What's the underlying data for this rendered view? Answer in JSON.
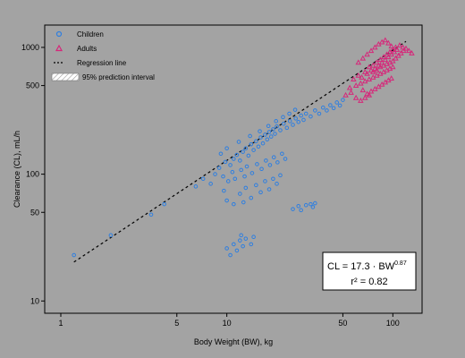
{
  "chart_data": {
    "type": "scatter",
    "title": "",
    "xlabel": "Body Weight (BW), kg",
    "ylabel": "Clearance (CL), mL/h",
    "xscale": "log",
    "yscale": "log",
    "xlim": [
      0.8,
      150
    ],
    "ylim": [
      8,
      1500
    ],
    "x_ticks": [
      1,
      5,
      10,
      50,
      100
    ],
    "y_ticks": [
      10,
      50,
      100,
      500,
      1000
    ],
    "grid": false,
    "legend_position": "top-left",
    "legend": [
      {
        "name": "Children",
        "marker": "circle",
        "color": "#2f7fe0"
      },
      {
        "name": "Adults",
        "marker": "triangle",
        "color": "#d6277a"
      },
      {
        "name": "Regression line",
        "marker": "dashed-line",
        "color": "#000000"
      },
      {
        "name": "95% prediction interval",
        "marker": "hatched-box",
        "color": "#ffffff"
      }
    ],
    "regression": {
      "coefficient": 17.3,
      "exponent": 0.87,
      "x_range": [
        1.2,
        120
      ]
    },
    "series": [
      {
        "name": "Children",
        "marker": "circle",
        "color": "#2f7fe0",
        "points": [
          [
            1.2,
            23
          ],
          [
            2.0,
            33
          ],
          [
            3.5,
            48
          ],
          [
            4.2,
            58
          ],
          [
            6.5,
            80
          ],
          [
            7.2,
            92
          ],
          [
            8.0,
            84
          ],
          [
            8.5,
            100
          ],
          [
            9.0,
            112
          ],
          [
            9.5,
            96
          ],
          [
            9.8,
            125
          ],
          [
            10.5,
            118
          ],
          [
            11.0,
            132
          ],
          [
            11.5,
            142
          ],
          [
            12.0,
            128
          ],
          [
            12.5,
            150
          ],
          [
            13.0,
            160
          ],
          [
            13.5,
            140
          ],
          [
            14.0,
            172
          ],
          [
            14.5,
            155
          ],
          [
            15.0,
            182
          ],
          [
            15.5,
            165
          ],
          [
            16.0,
            195
          ],
          [
            16.5,
            175
          ],
          [
            17.0,
            205
          ],
          [
            17.5,
            188
          ],
          [
            18.0,
            215
          ],
          [
            18.5,
            198
          ],
          [
            19.0,
            226
          ],
          [
            19.5,
            208
          ],
          [
            20.0,
            238
          ],
          [
            21.0,
            222
          ],
          [
            22.0,
            250
          ],
          [
            23.0,
            232
          ],
          [
            24.0,
            262
          ],
          [
            25.0,
            245
          ],
          [
            26.0,
            275
          ],
          [
            27.0,
            258
          ],
          [
            28.0,
            290
          ],
          [
            29.0,
            268
          ],
          [
            30.0,
            300
          ],
          [
            32.0,
            285
          ],
          [
            34.0,
            318
          ],
          [
            36.0,
            300
          ],
          [
            38.0,
            335
          ],
          [
            40.0,
            318
          ],
          [
            42.0,
            350
          ],
          [
            44.0,
            332
          ],
          [
            46.0,
            368
          ],
          [
            48.0,
            348
          ],
          [
            50.0,
            385
          ],
          [
            10.2,
            88
          ],
          [
            10.8,
            104
          ],
          [
            11.2,
            92
          ],
          [
            12.2,
            108
          ],
          [
            12.8,
            96
          ],
          [
            13.2,
            115
          ],
          [
            14.2,
            102
          ],
          [
            15.2,
            120
          ],
          [
            16.2,
            110
          ],
          [
            17.2,
            128
          ],
          [
            18.2,
            118
          ],
          [
            19.2,
            136
          ],
          [
            20.2,
            124
          ],
          [
            21.5,
            145
          ],
          [
            22.5,
            132
          ],
          [
            9.2,
            145
          ],
          [
            10.0,
            160
          ],
          [
            11.8,
            180
          ],
          [
            13.8,
            200
          ],
          [
            15.8,
            218
          ],
          [
            17.8,
            240
          ],
          [
            19.8,
            262
          ],
          [
            21.8,
            282
          ],
          [
            23.8,
            300
          ],
          [
            25.8,
            322
          ],
          [
            12.0,
            70
          ],
          [
            13.0,
            78
          ],
          [
            14.0,
            65
          ],
          [
            15.0,
            82
          ],
          [
            16.0,
            72
          ],
          [
            17.0,
            88
          ],
          [
            18.0,
            76
          ],
          [
            19.0,
            92
          ],
          [
            20.0,
            84
          ],
          [
            21.0,
            98
          ],
          [
            10.0,
            62
          ],
          [
            11.0,
            58
          ],
          [
            9.6,
            74
          ],
          [
            12.6,
            60
          ],
          [
            25.0,
            53
          ],
          [
            27.0,
            56
          ],
          [
            28.0,
            52
          ],
          [
            30.0,
            57
          ],
          [
            32.0,
            58
          ],
          [
            33.0,
            55
          ],
          [
            34.0,
            59
          ],
          [
            10.0,
            26
          ],
          [
            11.0,
            28
          ],
          [
            11.5,
            25
          ],
          [
            12.0,
            30
          ],
          [
            12.5,
            27
          ],
          [
            13.0,
            31
          ],
          [
            14.0,
            28
          ],
          [
            14.5,
            32
          ],
          [
            10.5,
            23
          ],
          [
            12.2,
            33
          ]
        ]
      },
      {
        "name": "Adults",
        "marker": "triangle",
        "color": "#d6277a",
        "points": [
          [
            58,
            560
          ],
          [
            62,
            600
          ],
          [
            65,
            580
          ],
          [
            68,
            640
          ],
          [
            70,
            620
          ],
          [
            72,
            700
          ],
          [
            74,
            660
          ],
          [
            76,
            720
          ],
          [
            78,
            680
          ],
          [
            80,
            760
          ],
          [
            82,
            720
          ],
          [
            84,
            800
          ],
          [
            86,
            760
          ],
          [
            88,
            840
          ],
          [
            90,
            800
          ],
          [
            92,
            880
          ],
          [
            94,
            840
          ],
          [
            96,
            920
          ],
          [
            98,
            880
          ],
          [
            100,
            960
          ],
          [
            102,
            920
          ],
          [
            104,
            1000
          ],
          [
            106,
            960
          ],
          [
            110,
            1040
          ],
          [
            115,
            1000
          ],
          [
            120,
            980
          ],
          [
            125,
            940
          ],
          [
            130,
            900
          ],
          [
            60,
            500
          ],
          [
            64,
            520
          ],
          [
            68,
            540
          ],
          [
            72,
            560
          ],
          [
            76,
            580
          ],
          [
            80,
            600
          ],
          [
            84,
            620
          ],
          [
            88,
            640
          ],
          [
            92,
            660
          ],
          [
            96,
            680
          ],
          [
            100,
            700
          ],
          [
            55,
            480
          ],
          [
            66,
            460
          ],
          [
            70,
            430
          ],
          [
            74,
            450
          ],
          [
            78,
            470
          ],
          [
            82,
            490
          ],
          [
            86,
            510
          ],
          [
            90,
            530
          ],
          [
            94,
            550
          ],
          [
            98,
            570
          ],
          [
            62,
            760
          ],
          [
            66,
            820
          ],
          [
            70,
            880
          ],
          [
            74,
            940
          ],
          [
            78,
            1000
          ],
          [
            82,
            1060
          ],
          [
            86,
            1100
          ],
          [
            90,
            1140
          ],
          [
            94,
            1080
          ],
          [
            98,
            1020
          ],
          [
            52,
            420
          ],
          [
            56,
            440
          ],
          [
            60,
            400
          ],
          [
            64,
            380
          ],
          [
            68,
            400
          ],
          [
            72,
            420
          ],
          [
            76,
            640
          ],
          [
            80,
            660
          ],
          [
            84,
            700
          ],
          [
            88,
            720
          ],
          [
            92,
            740
          ],
          [
            96,
            760
          ],
          [
            100,
            780
          ],
          [
            104,
            820
          ],
          [
            108,
            860
          ],
          [
            112,
            900
          ],
          [
            116,
            940
          ]
        ]
      }
    ],
    "annotations": [
      {
        "text": "CL = 17.3 · BW",
        "superscript": "0.87",
        "line2": "r² = 0.82"
      }
    ]
  }
}
